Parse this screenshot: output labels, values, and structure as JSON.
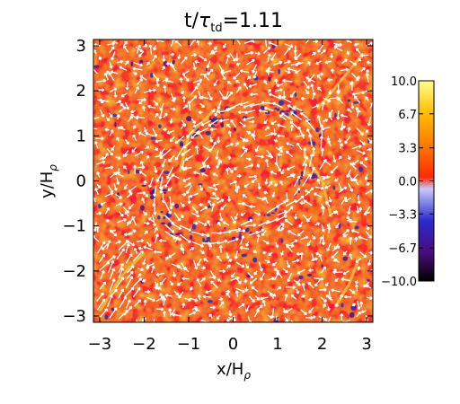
{
  "figure": {
    "title": "t/τ_td=1.11",
    "title_parts": {
      "var": "t/",
      "tau": "τ",
      "sub": "td",
      "value": "=1.11"
    }
  },
  "chart_data": {
    "type": "heatmap",
    "description_of_field": "image with velocity vector overlay",
    "xlabel": "x/H_ρ",
    "xlabel_parts": {
      "main": "x/H",
      "sub": "ρ"
    },
    "ylabel": "y/H_ρ",
    "ylabel_parts": {
      "main": "y/H",
      "sub": "ρ"
    },
    "xlim": [
      -3.14,
      3.14
    ],
    "ylim": [
      -3.14,
      3.14
    ],
    "xticks": [
      -3,
      -2,
      -1,
      0,
      1,
      2,
      3
    ],
    "yticks": [
      -3,
      -2,
      -1,
      0,
      1,
      2,
      3
    ],
    "xtick_labels": [
      "−3",
      "−2",
      "−1",
      "0",
      "1",
      "2",
      "3"
    ],
    "ytick_labels": [
      "−3",
      "−2",
      "−1",
      "0",
      "1",
      "2",
      "3"
    ],
    "colorbar": {
      "range": [
        -10.0,
        10.0
      ],
      "ticks": [
        10.0,
        6.7,
        3.3,
        0.0,
        -3.3,
        -6.7,
        -10.0
      ],
      "tick_labels": [
        "10.0",
        "6.7",
        "3.3",
        "0.0",
        "−3.3",
        "−6.7",
        "−10.0"
      ],
      "colors": [
        "#000000",
        "#5a0f8a",
        "#2828c8",
        "#c8c8ff",
        "#ff3c00",
        "#ff8c00",
        "#ffc000",
        "#ffff90"
      ]
    },
    "features": {
      "ellipse_center": [
        0.1,
        0.2
      ],
      "ellipse_semi_axes": [
        1.9,
        1.25
      ],
      "ellipse_tilt_deg": 30
    },
    "background_color": "#f25a1e",
    "vector_color": "#ffffff"
  }
}
